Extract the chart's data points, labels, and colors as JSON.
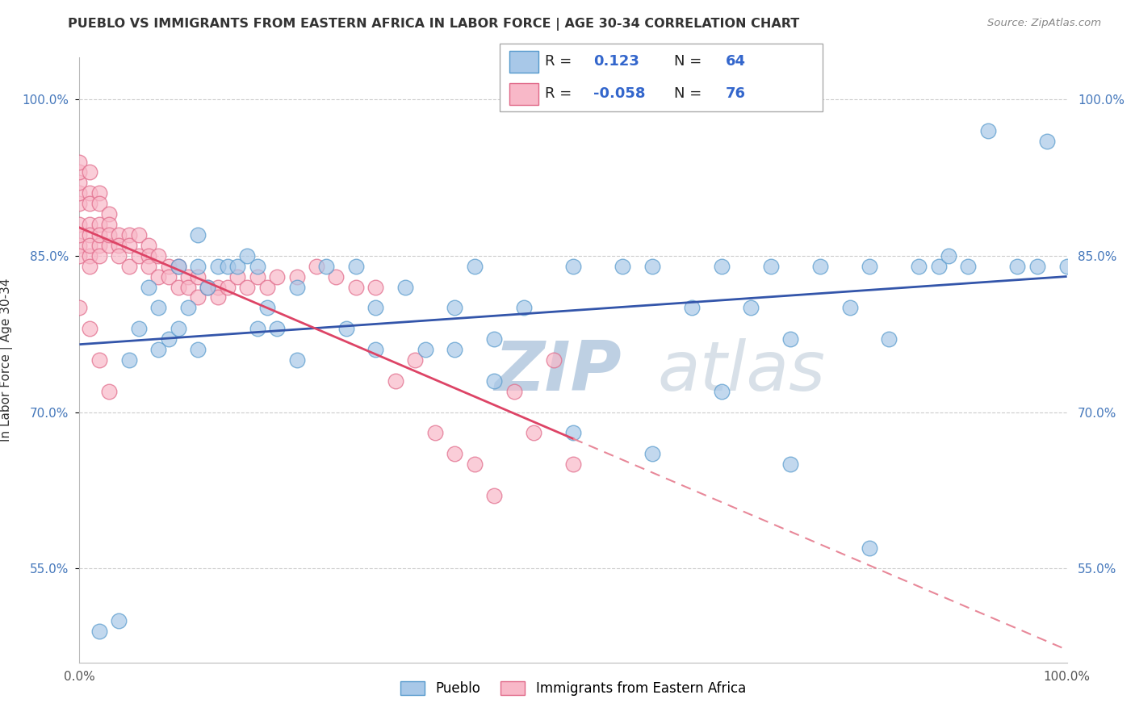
{
  "title": "PUEBLO VS IMMIGRANTS FROM EASTERN AFRICA IN LABOR FORCE | AGE 30-34 CORRELATION CHART",
  "source": "Source: ZipAtlas.com",
  "ylabel": "In Labor Force | Age 30-34",
  "xlim": [
    0.0,
    1.0
  ],
  "ylim": [
    0.46,
    1.04
  ],
  "yticks": [
    0.55,
    0.7,
    0.85,
    1.0
  ],
  "ytick_labels": [
    "55.0%",
    "70.0%",
    "85.0%",
    "100.0%"
  ],
  "xtick_labels": [
    "0.0%",
    "100.0%"
  ],
  "xticks": [
    0.0,
    1.0
  ],
  "pueblo_color": "#a8c8e8",
  "pueblo_edge_color": "#5599cc",
  "immigrant_color": "#f8b8c8",
  "immigrant_edge_color": "#e06888",
  "trendline_pueblo_color": "#3355aa",
  "trendline_immigrant_color": "#dd4466",
  "trendline_immigrant_dash_color": "#e88899",
  "R_pueblo": "0.123",
  "N_pueblo": "64",
  "R_immigrant": "-0.058",
  "N_immigrant": "76",
  "watermark_zip": "ZIP",
  "watermark_atlas": "atlas",
  "legend_label_pueblo": "Pueblo",
  "legend_label_immigrant": "Immigrants from Eastern Africa",
  "pueblo_scatter_x": [
    0.02,
    0.04,
    0.07,
    0.08,
    0.09,
    0.1,
    0.11,
    0.12,
    0.12,
    0.13,
    0.14,
    0.15,
    0.16,
    0.17,
    0.18,
    0.19,
    0.2,
    0.22,
    0.25,
    0.28,
    0.3,
    0.33,
    0.35,
    0.38,
    0.4,
    0.42,
    0.45,
    0.5,
    0.55,
    0.58,
    0.62,
    0.65,
    0.68,
    0.7,
    0.72,
    0.75,
    0.78,
    0.8,
    0.82,
    0.85,
    0.87,
    0.88,
    0.9,
    0.92,
    0.95,
    0.97,
    0.98,
    1.0,
    0.05,
    0.06,
    0.08,
    0.1,
    0.12,
    0.18,
    0.22,
    0.27,
    0.3,
    0.38,
    0.42,
    0.5,
    0.58,
    0.65,
    0.72,
    0.8
  ],
  "pueblo_scatter_y": [
    0.49,
    0.5,
    0.82,
    0.8,
    0.77,
    0.84,
    0.8,
    0.84,
    0.87,
    0.82,
    0.84,
    0.84,
    0.84,
    0.85,
    0.84,
    0.8,
    0.78,
    0.82,
    0.84,
    0.84,
    0.8,
    0.82,
    0.76,
    0.8,
    0.84,
    0.77,
    0.8,
    0.84,
    0.84,
    0.84,
    0.8,
    0.84,
    0.8,
    0.84,
    0.77,
    0.84,
    0.8,
    0.84,
    0.77,
    0.84,
    0.84,
    0.85,
    0.84,
    0.97,
    0.84,
    0.84,
    0.96,
    0.84,
    0.75,
    0.78,
    0.76,
    0.78,
    0.76,
    0.78,
    0.75,
    0.78,
    0.76,
    0.76,
    0.73,
    0.68,
    0.66,
    0.72,
    0.65,
    0.57
  ],
  "immigrant_scatter_x": [
    0.0,
    0.0,
    0.0,
    0.0,
    0.0,
    0.0,
    0.0,
    0.0,
    0.0,
    0.01,
    0.01,
    0.01,
    0.01,
    0.01,
    0.01,
    0.01,
    0.01,
    0.02,
    0.02,
    0.02,
    0.02,
    0.02,
    0.02,
    0.03,
    0.03,
    0.03,
    0.03,
    0.04,
    0.04,
    0.04,
    0.05,
    0.05,
    0.05,
    0.06,
    0.06,
    0.07,
    0.07,
    0.07,
    0.08,
    0.08,
    0.09,
    0.09,
    0.1,
    0.1,
    0.11,
    0.11,
    0.12,
    0.12,
    0.13,
    0.14,
    0.14,
    0.15,
    0.16,
    0.17,
    0.18,
    0.19,
    0.2,
    0.22,
    0.24,
    0.26,
    0.28,
    0.3,
    0.32,
    0.34,
    0.36,
    0.38,
    0.4,
    0.42,
    0.44,
    0.46,
    0.48,
    0.5,
    0.0,
    0.01,
    0.02,
    0.03
  ],
  "immigrant_scatter_y": [
    0.88,
    0.9,
    0.91,
    0.92,
    0.93,
    0.94,
    0.86,
    0.87,
    0.85,
    0.93,
    0.91,
    0.9,
    0.88,
    0.87,
    0.85,
    0.86,
    0.84,
    0.91,
    0.9,
    0.88,
    0.86,
    0.87,
    0.85,
    0.89,
    0.88,
    0.86,
    0.87,
    0.87,
    0.86,
    0.85,
    0.87,
    0.86,
    0.84,
    0.87,
    0.85,
    0.86,
    0.85,
    0.84,
    0.85,
    0.83,
    0.84,
    0.83,
    0.84,
    0.82,
    0.83,
    0.82,
    0.83,
    0.81,
    0.82,
    0.82,
    0.81,
    0.82,
    0.83,
    0.82,
    0.83,
    0.82,
    0.83,
    0.83,
    0.84,
    0.83,
    0.82,
    0.82,
    0.73,
    0.75,
    0.68,
    0.66,
    0.65,
    0.62,
    0.72,
    0.68,
    0.75,
    0.65,
    0.8,
    0.78,
    0.75,
    0.72
  ]
}
